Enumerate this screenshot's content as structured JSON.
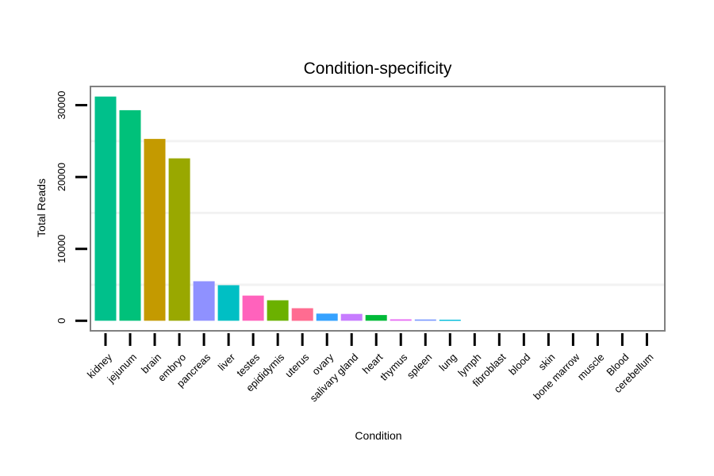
{
  "chart_data": {
    "type": "bar",
    "title": "Condition-specificity",
    "xlabel": "Condition",
    "ylabel": "Total Reads",
    "ylim": [
      -1400,
      32600
    ],
    "yticks": [
      0,
      10000,
      20000,
      30000
    ],
    "grid": true,
    "legend": "none",
    "categories": [
      "kidney",
      "jejunum",
      "brain",
      "embryo",
      "pancreas",
      "liver",
      "testes",
      "epididymis",
      "uterus",
      "ovary",
      "salivary gland",
      "heart",
      "thymus",
      "spleen",
      "lung",
      "lymph",
      "fibroblast",
      "blood",
      "skin",
      "bone marrow",
      "muscle",
      "Blood",
      "cerebellum"
    ],
    "values": [
      31200,
      29300,
      25300,
      22600,
      5500,
      4950,
      3500,
      2850,
      1750,
      1000,
      950,
      800,
      200,
      180,
      150,
      0,
      0,
      0,
      0,
      0,
      0,
      0,
      0
    ],
    "colors": [
      "#00c08b",
      "#00c17a",
      "#c49a00",
      "#99a800",
      "#8f91ff",
      "#00bfc4",
      "#ff62bc",
      "#6bb100",
      "#ff6c91",
      "#35a2ff",
      "#c77cff",
      "#00ba38",
      "#e76bf3",
      "#7997ff",
      "#00bbdb",
      "#00c1a3",
      "#f8766d",
      "#ef7f49",
      "#de8c00",
      "#a3a500",
      "#00a9ff",
      "#fd61d1",
      "#fa62db"
    ]
  }
}
